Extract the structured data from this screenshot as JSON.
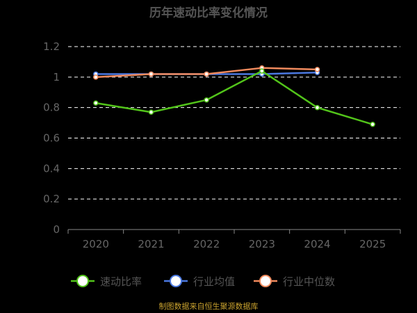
{
  "title": "历年速动比率变化情况",
  "source": "制图数据来自恒生聚源数据库",
  "chart_data": {
    "type": "line",
    "title": "历年速动比率变化情况",
    "categories": [
      "2020",
      "2021",
      "2022",
      "2023",
      "2024",
      "2025"
    ],
    "ylim": [
      0,
      1.2
    ],
    "yticks": [
      0,
      0.2,
      0.4,
      0.6,
      0.8,
      1,
      1.2
    ],
    "ytick_labels": [
      "0",
      "0.2",
      "0.4",
      "0.6",
      "0.8",
      "1",
      "1.2"
    ],
    "grid": true,
    "legend_position": "bottom",
    "series": [
      {
        "name": "速动比率",
        "color": "#52c41a",
        "values": [
          0.83,
          0.77,
          0.85,
          1.04,
          0.8,
          0.69
        ]
      },
      {
        "name": "行业均值",
        "color": "#4a78e0",
        "values": [
          1.02,
          1.02,
          1.02,
          1.02,
          1.03,
          null
        ]
      },
      {
        "name": "行业中位数",
        "color": "#f08a5d",
        "values": [
          1.0,
          1.02,
          1.02,
          1.06,
          1.05,
          null
        ]
      }
    ]
  }
}
